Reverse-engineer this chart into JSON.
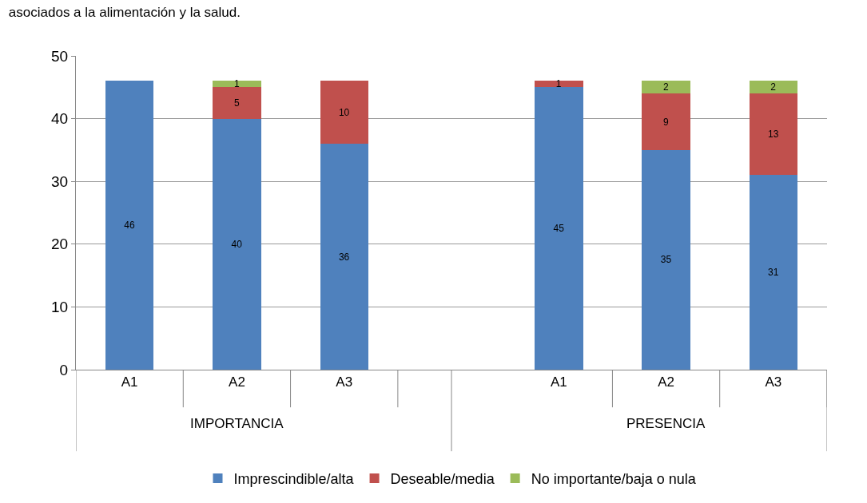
{
  "chart_data": {
    "type": "bar",
    "stacked": true,
    "title": "asociados a la alimentación y la salud.",
    "categories": [
      "A1",
      "A2",
      "A3",
      null,
      "A1",
      "A2",
      "A3"
    ],
    "series": [
      {
        "name": "Imprescindible/alta",
        "color": "#4f81bd",
        "values": [
          46,
          40,
          36,
          null,
          45,
          35,
          31
        ],
        "value_labels": [
          "46",
          "40",
          "36",
          null,
          "45",
          "35",
          "31"
        ]
      },
      {
        "name": "Deseable/media",
        "color": "#c0504d",
        "values": [
          0,
          5,
          10,
          null,
          1,
          9,
          13
        ],
        "value_labels": [
          null,
          "5",
          "10",
          null,
          "1",
          "9",
          "13"
        ]
      },
      {
        "name": "No importante/baja o nula",
        "color": "#9bbb59",
        "values": [
          0,
          1,
          0,
          null,
          0,
          2,
          2
        ],
        "value_labels": [
          null,
          "1",
          null,
          null,
          null,
          "2",
          "2"
        ]
      }
    ],
    "annotations": [
      "IMPORTANCIA",
      "PRESENCIA"
    ],
    "ylim": [
      0,
      50
    ],
    "yticks": [
      0,
      10,
      20,
      30,
      40,
      50
    ],
    "grid": "y",
    "legend": "bottom"
  }
}
